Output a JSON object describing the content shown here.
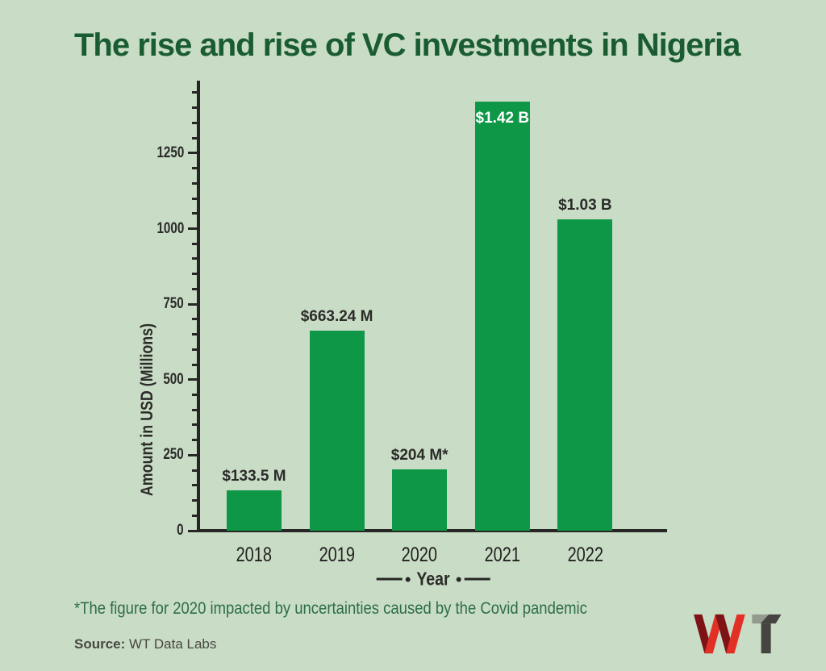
{
  "title": "The rise and rise of VC investments in Nigeria",
  "chart_data": {
    "type": "bar",
    "title": "The rise and rise of VC investments in Nigeria",
    "categories": [
      "2018",
      "2019",
      "2020",
      "2021",
      "2022"
    ],
    "values": [
      133.5,
      663.24,
      204,
      1420,
      1030
    ],
    "bar_labels": [
      "$133.5 M",
      "$663.24 M",
      "$204 M*",
      "$1.42 B",
      "$1.03 B"
    ],
    "label_inside": [
      false,
      false,
      false,
      true,
      false
    ],
    "xlabel": "Year",
    "ylabel": "Amount in USD (Millions)",
    "ylim": [
      0,
      1490
    ],
    "yticks": [
      0,
      250,
      500,
      750,
      1000,
      1250
    ],
    "minor_tick_step": 50,
    "grid": false,
    "legend": "none",
    "bar_color": "#0e9746",
    "label_color": "#2b2b28",
    "inside_label_color": "#ffffff"
  },
  "footnote": "*The figure for 2020 impacted by uncertainties caused by the Covid pandemic",
  "source": {
    "label": "Source:",
    "text": " WT Data Labs"
  },
  "logo": {
    "monogram": "WT",
    "w_bright": "#e23027",
    "w_dark": "#7d1315",
    "t_dark": "#454440",
    "t_light": "#949a8d"
  },
  "colors": {
    "background": "#c9dcc6",
    "title": "#1a5c31",
    "footnote": "#2d6e48",
    "axis": "#262624"
  }
}
